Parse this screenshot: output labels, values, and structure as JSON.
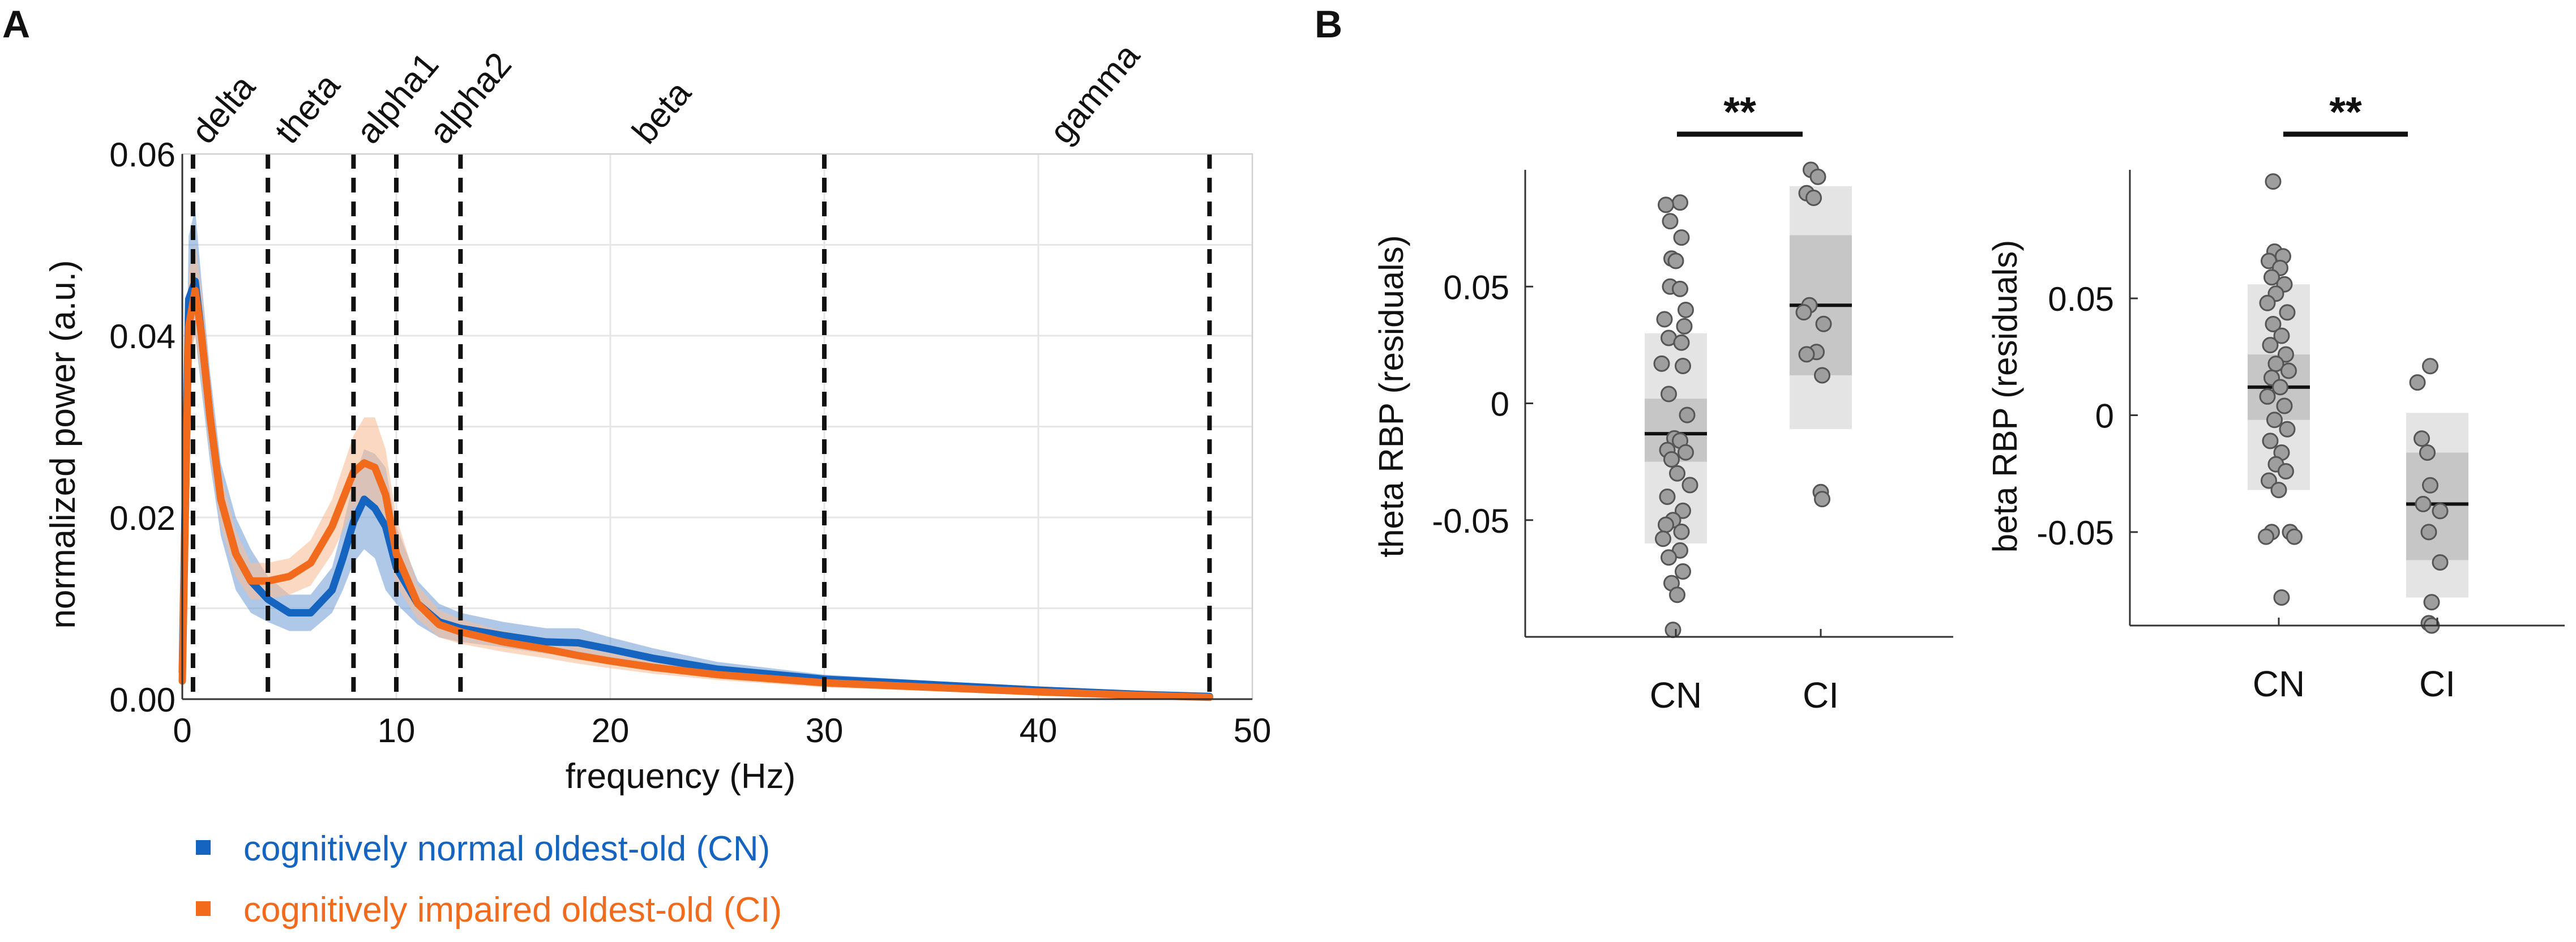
{
  "panel_labels": {
    "a": "A",
    "b": "B"
  },
  "colors": {
    "cn": "#1565C0",
    "ci": "#F26B1D",
    "cn_band": "#6E9BD6",
    "ci_band": "#F6BE98",
    "dot": "#9E9E9E"
  },
  "chart_data": [
    {
      "type": "line",
      "title": "",
      "xlabel": "frequency (Hz)",
      "ylabel": "normalized power (a.u.)",
      "xlim": [
        0,
        50
      ],
      "ylim": [
        0,
        0.06
      ],
      "xticks": [
        0,
        10,
        20,
        30,
        40,
        50
      ],
      "xtick_labels": [
        "0",
        "10",
        "20",
        "30",
        "40",
        "50"
      ],
      "yticks": [
        0,
        0.02,
        0.04,
        0.06
      ],
      "ytick_labels": [
        "0.00",
        "0.02",
        "0.04",
        "0.06"
      ],
      "grid": true,
      "bands": [
        {
          "name": "delta",
          "edge": 0.5
        },
        {
          "name": "theta",
          "edge": 4
        },
        {
          "name": "alpha1",
          "edge": 8
        },
        {
          "name": "alpha2",
          "edge": 10
        },
        {
          "name": "beta",
          "edge": 13
        },
        {
          "name": "gamma",
          "edge": 30
        }
      ],
      "band_edges": [
        0.5,
        4,
        8,
        10,
        13,
        30,
        48
      ],
      "x": [
        0,
        0.3,
        0.6,
        0.9,
        1.3,
        1.8,
        2.5,
        3.2,
        4,
        5,
        6,
        7,
        7.5,
        8,
        8.5,
        9,
        9.5,
        10,
        11,
        12,
        13,
        15,
        17,
        18.5,
        20,
        22,
        25,
        30,
        35,
        40,
        45,
        48
      ],
      "series": [
        {
          "name": "cognitively normal oldest-old (CN)",
          "color": "#1565C0",
          "values": [
            0.003,
            0.044,
            0.046,
            0.04,
            0.031,
            0.022,
            0.016,
            0.013,
            0.011,
            0.0095,
            0.0095,
            0.012,
            0.0155,
            0.0195,
            0.022,
            0.021,
            0.019,
            0.0145,
            0.0105,
            0.0085,
            0.0078,
            0.007,
            0.0063,
            0.0062,
            0.0055,
            0.0045,
            0.0033,
            0.0022,
            0.0016,
            0.001,
            0.0005,
            0.0003
          ],
          "lower": [
            0.001,
            0.038,
            0.04,
            0.034,
            0.026,
            0.018,
            0.012,
            0.0095,
            0.0085,
            0.0075,
            0.0075,
            0.0095,
            0.012,
            0.015,
            0.0165,
            0.0155,
            0.012,
            0.0105,
            0.0082,
            0.0068,
            0.0063,
            0.0057,
            0.005,
            0.0048,
            0.0042,
            0.0034,
            0.0025,
            0.0017,
            0.0012,
            0.0007,
            0.0003,
            0.0001
          ],
          "upper": [
            0.006,
            0.051,
            0.054,
            0.046,
            0.036,
            0.026,
            0.02,
            0.0165,
            0.0135,
            0.0115,
            0.0115,
            0.0145,
            0.019,
            0.024,
            0.0275,
            0.027,
            0.0255,
            0.019,
            0.013,
            0.0105,
            0.0095,
            0.0085,
            0.0078,
            0.0078,
            0.0068,
            0.0056,
            0.0041,
            0.0027,
            0.002,
            0.0013,
            0.0007,
            0.0005
          ]
        },
        {
          "name": "cognitively impaired oldest-old (CI)",
          "color": "#F26B1D",
          "values": [
            0.002,
            0.041,
            0.045,
            0.04,
            0.031,
            0.022,
            0.016,
            0.013,
            0.013,
            0.0135,
            0.015,
            0.019,
            0.022,
            0.025,
            0.026,
            0.0255,
            0.0225,
            0.016,
            0.0105,
            0.0082,
            0.0074,
            0.0063,
            0.0055,
            0.0048,
            0.0042,
            0.0035,
            0.0027,
            0.0018,
            0.0013,
            0.0008,
            0.0004,
            0.0002
          ],
          "lower": [
            0.001,
            0.036,
            0.04,
            0.035,
            0.027,
            0.019,
            0.0135,
            0.011,
            0.011,
            0.0115,
            0.0125,
            0.016,
            0.0185,
            0.021,
            0.022,
            0.021,
            0.018,
            0.0125,
            0.0088,
            0.0068,
            0.0061,
            0.0052,
            0.0045,
            0.0039,
            0.0034,
            0.0028,
            0.0021,
            0.0013,
            0.0009,
            0.0005,
            0.0002,
            0.0001
          ],
          "upper": [
            0.005,
            0.047,
            0.05,
            0.045,
            0.035,
            0.025,
            0.0185,
            0.015,
            0.015,
            0.0155,
            0.0175,
            0.022,
            0.0255,
            0.029,
            0.031,
            0.031,
            0.0275,
            0.02,
            0.0125,
            0.0098,
            0.0088,
            0.0075,
            0.0066,
            0.0058,
            0.0051,
            0.0043,
            0.0033,
            0.0023,
            0.0017,
            0.0011,
            0.0006,
            0.0004
          ]
        }
      ],
      "legend": [
        {
          "label": "cognitively normal oldest-old (CN)",
          "color": "#1565C0"
        },
        {
          "label": "cognitively impaired oldest-old (CI)",
          "color": "#F26B1D"
        }
      ],
      "legend_position": "bottom"
    },
    {
      "type": "scatter",
      "title": "",
      "xlabel": "",
      "ylabel": "theta RBP (residuals)",
      "categories": [
        "CN",
        "CI"
      ],
      "ylim": [
        -0.1,
        0.1
      ],
      "yticks": [
        -0.05,
        0,
        0.05
      ],
      "ytick_labels": [
        "-0.05",
        "0",
        "0.05"
      ],
      "significance": "**",
      "groups": [
        {
          "name": "CN",
          "mean": -0.013,
          "sem_lo": -0.025,
          "sem_hi": 0.002,
          "sd_lo": -0.06,
          "sd_hi": 0.03,
          "points": [
            {
              "dx": 0.03,
              "y": 0.086
            },
            {
              "dx": -0.07,
              "y": 0.085
            },
            {
              "dx": -0.04,
              "y": 0.078
            },
            {
              "dx": 0.04,
              "y": 0.071
            },
            {
              "dx": -0.03,
              "y": 0.062
            },
            {
              "dx": 0.0,
              "y": 0.061
            },
            {
              "dx": -0.04,
              "y": 0.05
            },
            {
              "dx": 0.03,
              "y": 0.049
            },
            {
              "dx": 0.07,
              "y": 0.04
            },
            {
              "dx": -0.08,
              "y": 0.036
            },
            {
              "dx": 0.06,
              "y": 0.033
            },
            {
              "dx": -0.05,
              "y": 0.028
            },
            {
              "dx": 0.04,
              "y": 0.026
            },
            {
              "dx": -0.1,
              "y": 0.017
            },
            {
              "dx": 0.05,
              "y": 0.016
            },
            {
              "dx": -0.05,
              "y": 0.004
            },
            {
              "dx": 0.08,
              "y": -0.005
            },
            {
              "dx": -0.01,
              "y": -0.015
            },
            {
              "dx": 0.03,
              "y": -0.016
            },
            {
              "dx": -0.06,
              "y": -0.02
            },
            {
              "dx": 0.07,
              "y": -0.021
            },
            {
              "dx": -0.03,
              "y": -0.024
            },
            {
              "dx": 0.01,
              "y": -0.03
            },
            {
              "dx": 0.1,
              "y": -0.035
            },
            {
              "dx": -0.06,
              "y": -0.04
            },
            {
              "dx": 0.05,
              "y": -0.046
            },
            {
              "dx": -0.02,
              "y": -0.05
            },
            {
              "dx": -0.07,
              "y": -0.052
            },
            {
              "dx": 0.04,
              "y": -0.055
            },
            {
              "dx": -0.09,
              "y": -0.058
            },
            {
              "dx": 0.03,
              "y": -0.063
            },
            {
              "dx": -0.05,
              "y": -0.066
            },
            {
              "dx": 0.05,
              "y": -0.072
            },
            {
              "dx": -0.03,
              "y": -0.077
            },
            {
              "dx": 0.01,
              "y": -0.082
            },
            {
              "dx": -0.02,
              "y": -0.097
            }
          ]
        },
        {
          "name": "CI",
          "mean": 0.042,
          "sem_lo": 0.012,
          "sem_hi": 0.072,
          "sd_lo": -0.011,
          "sd_hi": 0.093,
          "points": [
            {
              "dx": -0.07,
              "y": 0.1
            },
            {
              "dx": -0.02,
              "y": 0.097
            },
            {
              "dx": -0.1,
              "y": 0.09
            },
            {
              "dx": -0.05,
              "y": 0.088
            },
            {
              "dx": -0.08,
              "y": 0.042
            },
            {
              "dx": -0.12,
              "y": 0.039
            },
            {
              "dx": 0.02,
              "y": 0.034
            },
            {
              "dx": -0.03,
              "y": 0.022
            },
            {
              "dx": -0.1,
              "y": 0.021
            },
            {
              "dx": 0.01,
              "y": 0.012
            },
            {
              "dx": 0.0,
              "y": -0.038
            },
            {
              "dx": 0.01,
              "y": -0.041
            }
          ]
        }
      ]
    },
    {
      "type": "scatter",
      "title": "",
      "xlabel": "",
      "ylabel": "beta RBP (residuals)",
      "categories": [
        "CN",
        "CI"
      ],
      "ylim": [
        -0.09,
        0.105
      ],
      "yticks": [
        -0.05,
        0,
        0.05
      ],
      "ytick_labels": [
        "-0.05",
        "0",
        "0.05"
      ],
      "significance": "**",
      "groups": [
        {
          "name": "CN",
          "mean": 0.012,
          "sem_lo": -0.002,
          "sem_hi": 0.026,
          "sd_lo": -0.032,
          "sd_hi": 0.056,
          "points": [
            {
              "dx": -0.04,
              "y": 0.1
            },
            {
              "dx": -0.03,
              "y": 0.07
            },
            {
              "dx": 0.03,
              "y": 0.068
            },
            {
              "dx": -0.07,
              "y": 0.066
            },
            {
              "dx": 0.01,
              "y": 0.063
            },
            {
              "dx": -0.05,
              "y": 0.059
            },
            {
              "dx": 0.04,
              "y": 0.056
            },
            {
              "dx": -0.02,
              "y": 0.052
            },
            {
              "dx": -0.08,
              "y": 0.048
            },
            {
              "dx": 0.06,
              "y": 0.044
            },
            {
              "dx": -0.04,
              "y": 0.039
            },
            {
              "dx": 0.02,
              "y": 0.034
            },
            {
              "dx": -0.06,
              "y": 0.03
            },
            {
              "dx": 0.05,
              "y": 0.026
            },
            {
              "dx": -0.02,
              "y": 0.022
            },
            {
              "dx": 0.07,
              "y": 0.019
            },
            {
              "dx": -0.05,
              "y": 0.016
            },
            {
              "dx": 0.01,
              "y": 0.012
            },
            {
              "dx": -0.08,
              "y": 0.008
            },
            {
              "dx": 0.04,
              "y": 0.004
            },
            {
              "dx": -0.03,
              "y": -0.002
            },
            {
              "dx": 0.06,
              "y": -0.006
            },
            {
              "dx": -0.06,
              "y": -0.011
            },
            {
              "dx": 0.02,
              "y": -0.016
            },
            {
              "dx": -0.02,
              "y": -0.021
            },
            {
              "dx": 0.05,
              "y": -0.024
            },
            {
              "dx": -0.07,
              "y": -0.028
            },
            {
              "dx": 0.0,
              "y": -0.032
            },
            {
              "dx": -0.05,
              "y": -0.05
            },
            {
              "dx": 0.08,
              "y": -0.05
            },
            {
              "dx": 0.11,
              "y": -0.052
            },
            {
              "dx": -0.09,
              "y": -0.052
            },
            {
              "dx": 0.02,
              "y": -0.078
            }
          ]
        },
        {
          "name": "CI",
          "mean": -0.038,
          "sem_lo": -0.062,
          "sem_hi": -0.016,
          "sd_lo": -0.078,
          "sd_hi": 0.001,
          "points": [
            {
              "dx": -0.05,
              "y": 0.021
            },
            {
              "dx": -0.14,
              "y": 0.014
            },
            {
              "dx": -0.11,
              "y": -0.01
            },
            {
              "dx": -0.07,
              "y": -0.016
            },
            {
              "dx": -0.05,
              "y": -0.03
            },
            {
              "dx": -0.1,
              "y": -0.038
            },
            {
              "dx": 0.02,
              "y": -0.041
            },
            {
              "dx": -0.06,
              "y": -0.05
            },
            {
              "dx": 0.02,
              "y": -0.063
            },
            {
              "dx": -0.04,
              "y": -0.08
            },
            {
              "dx": -0.06,
              "y": -0.089
            },
            {
              "dx": -0.04,
              "y": -0.09
            }
          ]
        }
      ]
    }
  ]
}
